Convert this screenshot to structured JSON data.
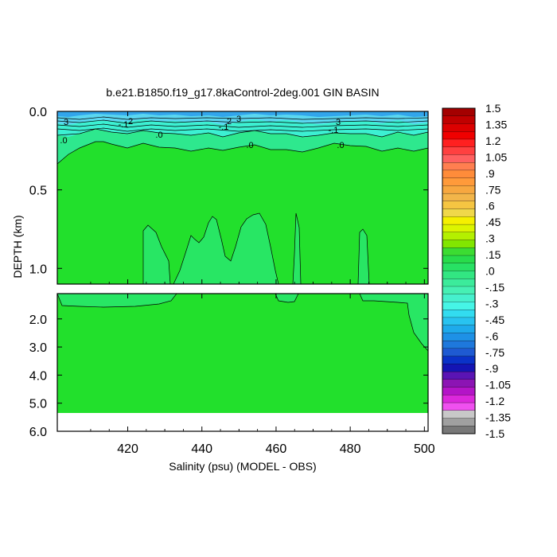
{
  "chart_data": {
    "type": "contour",
    "title": "b.e21.B1850.f19_g17.8kaControl-2deg.001 GIN BASIN",
    "xlabel": "Salinity (psu) (MODEL - OBS)",
    "ylabel": "DEPTH (km)",
    "xlim": [
      401,
      501
    ],
    "x_ticks": [
      "420",
      "440",
      "460",
      "480",
      "500"
    ],
    "x_tick_values": [
      420,
      440,
      460,
      480,
      500
    ],
    "panels": [
      {
        "name": "upper",
        "ylim": [
          0.0,
          1.1
        ],
        "y_ticks": [
          "0.0",
          "0.5",
          "1.0"
        ],
        "y_tick_values": [
          0.0,
          0.5,
          1.0
        ]
      },
      {
        "name": "lower",
        "ylim": [
          1.1,
          6.0
        ],
        "y_ticks": [
          "2.0",
          "3.0",
          "4.0",
          "5.0",
          "6.0"
        ],
        "y_tick_values": [
          2.0,
          3.0,
          4.0,
          5.0,
          6.0
        ]
      }
    ],
    "colorbar": {
      "labels": [
        "1.5",
        "1.35",
        "1.2",
        "1.05",
        ".9",
        ".75",
        ".6",
        ".45",
        ".3",
        ".15",
        ".0",
        "-.15",
        "-.3",
        "-.45",
        "-.6",
        "-.75",
        "-.9",
        "-1.05",
        "-1.2",
        "-1.35",
        "-1.5"
      ],
      "colors": [
        "#a40000",
        "#c00000",
        "#dc0000",
        "#f00000",
        "#ff2020",
        "#ff4040",
        "#ff6060",
        "#ff7f50",
        "#ff8c3a",
        "#ff9a3a",
        "#f7a740",
        "#f2b54a",
        "#f5c542",
        "#f0d84a",
        "#f5f000",
        "#dcf500",
        "#b4f000",
        "#82e600",
        "#3cdc32",
        "#28dc4b",
        "#28e164",
        "#32e682",
        "#3ceb9b",
        "#46f0b4",
        "#46f0cd",
        "#46f5e6",
        "#32dcf0",
        "#28c3f0",
        "#1eaaeb",
        "#1e91e6",
        "#1e78dc",
        "#1e5ad2",
        "#0a32c8",
        "#1414b4",
        "#5a14b4",
        "#8c14b4",
        "#b414c8",
        "#dc28dc",
        "#f050f0",
        "#c8c8c8",
        "#a0a0a0",
        "#787878"
      ]
    },
    "contour_labels": [
      {
        "text": "3"
      },
      {
        "text": "-.1"
      },
      {
        "text": "2"
      },
      {
        "text": ".0"
      },
      {
        "text": ".0"
      },
      {
        "text": "2"
      },
      {
        "text": "3"
      },
      {
        "text": "-.1"
      },
      {
        "text": ".0"
      },
      {
        "text": "3"
      },
      {
        "text": "-.1"
      },
      {
        "text": ".0"
      }
    ]
  }
}
